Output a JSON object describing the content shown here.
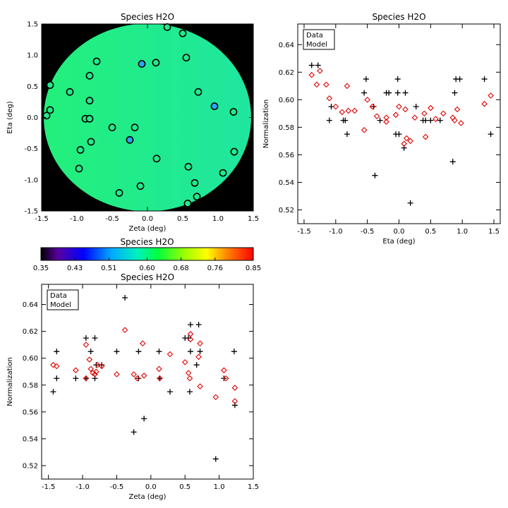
{
  "colors": {
    "disk_fill": "#22f07a",
    "disk_fill_edge": "#1fe6a0",
    "background": "#000000",
    "data_marker": "#000000",
    "model_marker": "#e00000"
  },
  "chart_data": [
    {
      "type": "scatter",
      "title": "Species H2O",
      "xlabel": "Zeta (deg)",
      "ylabel": "Eta (deg)",
      "xlim": [
        -1.5,
        1.5
      ],
      "ylim": [
        -1.5,
        1.5
      ],
      "xticks": [
        "-1.5",
        "-1.0",
        "-0.5",
        "0.0",
        "0.5",
        "1.0",
        "1.5"
      ],
      "yticks": [
        "-1.5",
        "-1.0",
        "-0.5",
        "0.0",
        "0.5",
        "1.0",
        "1.5"
      ],
      "description_value_range": [
        0.35,
        0.85
      ],
      "points": [
        {
          "x": 0.28,
          "y": 1.45,
          "v": 0.605
        },
        {
          "x": 0.5,
          "y": 1.35,
          "v": 0.605
        },
        {
          "x": 0.55,
          "y": 0.96,
          "v": 0.615
        },
        {
          "x": -0.08,
          "y": 0.86,
          "v": 0.545
        },
        {
          "x": 0.12,
          "y": 0.88,
          "v": 0.605
        },
        {
          "x": -0.72,
          "y": 0.9,
          "v": 0.605
        },
        {
          "x": -1.38,
          "y": 0.52,
          "v": 0.605
        },
        {
          "x": -1.1,
          "y": 0.41,
          "v": 0.605
        },
        {
          "x": -0.82,
          "y": 0.67,
          "v": 0.605
        },
        {
          "x": -0.82,
          "y": 0.27,
          "v": 0.605
        },
        {
          "x": 0.72,
          "y": 0.41,
          "v": 0.605
        },
        {
          "x": 0.95,
          "y": 0.18,
          "v": 0.56
        },
        {
          "x": 1.22,
          "y": 0.09,
          "v": 0.605
        },
        {
          "x": -1.38,
          "y": 0.12,
          "v": 0.605
        },
        {
          "x": -1.43,
          "y": 0.03,
          "v": 0.605
        },
        {
          "x": -0.88,
          "y": -0.02,
          "v": 0.605
        },
        {
          "x": -0.82,
          "y": -0.02,
          "v": 0.605
        },
        {
          "x": -0.5,
          "y": -0.16,
          "v": 0.605
        },
        {
          "x": -0.18,
          "y": -0.16,
          "v": 0.605
        },
        {
          "x": -0.8,
          "y": -0.39,
          "v": 0.605
        },
        {
          "x": -0.95,
          "y": -0.52,
          "v": 0.605
        },
        {
          "x": -0.25,
          "y": -0.36,
          "v": 0.565
        },
        {
          "x": 0.13,
          "y": -0.66,
          "v": 0.605
        },
        {
          "x": 1.23,
          "y": -0.55,
          "v": 0.605
        },
        {
          "x": -0.97,
          "y": -0.82,
          "v": 0.605
        },
        {
          "x": 0.58,
          "y": -0.79,
          "v": 0.605
        },
        {
          "x": 1.07,
          "y": -0.89,
          "v": 0.605
        },
        {
          "x": 0.67,
          "y": -1.05,
          "v": 0.605
        },
        {
          "x": -0.1,
          "y": -1.1,
          "v": 0.605
        },
        {
          "x": -0.4,
          "y": -1.21,
          "v": 0.605
        },
        {
          "x": 0.7,
          "y": -1.27,
          "v": 0.605
        },
        {
          "x": 0.57,
          "y": -1.38,
          "v": 0.605
        }
      ]
    },
    {
      "type": "scatter",
      "title": "Species H2O",
      "xlabel": "Eta (deg)",
      "ylabel": "Normalization",
      "xlim": [
        -1.6,
        1.6
      ],
      "ylim": [
        0.51,
        0.655
      ],
      "xticks": [
        "-1.5",
        "-1.0",
        "-0.5",
        "0.0",
        "0.5",
        "1.0",
        "1.5"
      ],
      "yticks": [
        "0.52",
        "0.54",
        "0.56",
        "0.58",
        "0.60",
        "0.62",
        "0.64"
      ],
      "legend_position": "top-left",
      "series": [
        {
          "name": "Data",
          "marker": "plus",
          "points": [
            [
              -1.38,
              0.625
            ],
            [
              -1.28,
              0.625
            ],
            [
              -1.07,
              0.595
            ],
            [
              -1.1,
              0.585
            ],
            [
              -0.88,
              0.585
            ],
            [
              -0.82,
              0.575
            ],
            [
              -0.85,
              0.585
            ],
            [
              -0.55,
              0.605
            ],
            [
              -0.52,
              0.615
            ],
            [
              -0.4,
              0.595
            ],
            [
              -0.38,
              0.545
            ],
            [
              -0.3,
              0.585
            ],
            [
              -0.2,
              0.605
            ],
            [
              -0.16,
              0.605
            ],
            [
              -0.02,
              0.615
            ],
            [
              -0.02,
              0.605
            ],
            [
              0.0,
              0.575
            ],
            [
              0.08,
              0.565
            ],
            [
              0.1,
              0.605
            ],
            [
              0.18,
              0.525
            ],
            [
              0.27,
              0.595
            ],
            [
              0.38,
              0.585
            ],
            [
              0.42,
              0.585
            ],
            [
              0.5,
              0.585
            ],
            [
              0.65,
              0.585
            ],
            [
              0.85,
              0.555
            ],
            [
              0.88,
              0.605
            ],
            [
              0.9,
              0.615
            ],
            [
              0.96,
              0.615
            ],
            [
              1.35,
              0.615
            ],
            [
              1.45,
              0.575
            ],
            [
              -0.05,
              0.575
            ]
          ]
        },
        {
          "name": "Model",
          "marker": "diamond",
          "points": [
            [
              -1.38,
              0.618
            ],
            [
              -1.3,
              0.611
            ],
            [
              -1.25,
              0.621
            ],
            [
              -1.15,
              0.611
            ],
            [
              -1.1,
              0.601
            ],
            [
              -1.0,
              0.595
            ],
            [
              -0.9,
              0.591
            ],
            [
              -0.8,
              0.592
            ],
            [
              -0.82,
              0.61
            ],
            [
              -0.7,
              0.592
            ],
            [
              -0.55,
              0.578
            ],
            [
              -0.5,
              0.6
            ],
            [
              -0.42,
              0.595
            ],
            [
              -0.35,
              0.588
            ],
            [
              -0.2,
              0.584
            ],
            [
              -0.2,
              0.587
            ],
            [
              -0.05,
              0.589
            ],
            [
              0.0,
              0.595
            ],
            [
              0.08,
              0.568
            ],
            [
              0.12,
              0.572
            ],
            [
              0.1,
              0.593
            ],
            [
              0.18,
              0.57
            ],
            [
              0.25,
              0.587
            ],
            [
              0.4,
              0.59
            ],
            [
              0.42,
              0.573
            ],
            [
              0.5,
              0.594
            ],
            [
              0.58,
              0.586
            ],
            [
              0.7,
              0.59
            ],
            [
              0.85,
              0.587
            ],
            [
              0.88,
              0.585
            ],
            [
              0.92,
              0.593
            ],
            [
              0.98,
              0.583
            ],
            [
              1.35,
              0.597
            ],
            [
              1.45,
              0.603
            ]
          ]
        }
      ]
    },
    {
      "type": "colorbar",
      "title": "Species H2O",
      "ticks": [
        "0.35",
        "0.43",
        "0.51",
        "0.60",
        "0.68",
        "0.76",
        "0.85"
      ],
      "range": [
        0.35,
        0.85
      ]
    },
    {
      "type": "scatter",
      "title": "Species H2O",
      "xlabel": "Zeta (deg)",
      "ylabel": "Normalization",
      "xlim": [
        -1.6,
        1.5
      ],
      "ylim": [
        0.51,
        0.655
      ],
      "xticks": [
        "-1.5",
        "-1.0",
        "-0.5",
        "0.0",
        "0.5",
        "1.0",
        "1.5"
      ],
      "yticks": [
        "0.52",
        "0.54",
        "0.56",
        "0.58",
        "0.60",
        "0.62",
        "0.64"
      ],
      "legend_position": "top-left",
      "series": [
        {
          "name": "Data",
          "marker": "plus",
          "points": [
            [
              -1.43,
              0.575
            ],
            [
              -1.38,
              0.605
            ],
            [
              -1.38,
              0.585
            ],
            [
              -1.1,
              0.585
            ],
            [
              -0.95,
              0.585
            ],
            [
              -0.95,
              0.615
            ],
            [
              -0.88,
              0.605
            ],
            [
              -0.82,
              0.615
            ],
            [
              -0.82,
              0.585
            ],
            [
              -0.8,
              0.595
            ],
            [
              -0.72,
              0.595
            ],
            [
              -0.5,
              0.605
            ],
            [
              -0.38,
              0.645
            ],
            [
              -0.25,
              0.545
            ],
            [
              -0.18,
              0.605
            ],
            [
              -0.18,
              0.585
            ],
            [
              -0.1,
              0.555
            ],
            [
              0.12,
              0.605
            ],
            [
              0.13,
              0.585
            ],
            [
              0.28,
              0.575
            ],
            [
              0.5,
              0.615
            ],
            [
              0.55,
              0.615
            ],
            [
              0.57,
              0.575
            ],
            [
              0.58,
              0.625
            ],
            [
              0.58,
              0.605
            ],
            [
              0.67,
              0.595
            ],
            [
              0.7,
              0.625
            ],
            [
              0.72,
              0.605
            ],
            [
              0.95,
              0.525
            ],
            [
              1.07,
              0.585
            ],
            [
              1.22,
              0.605
            ],
            [
              1.23,
              0.565
            ]
          ]
        },
        {
          "name": "Model",
          "marker": "diamond",
          "points": [
            [
              -1.43,
              0.595
            ],
            [
              -1.38,
              0.594
            ],
            [
              -1.1,
              0.591
            ],
            [
              -0.95,
              0.585
            ],
            [
              -0.95,
              0.61
            ],
            [
              -0.9,
              0.599
            ],
            [
              -0.88,
              0.592
            ],
            [
              -0.85,
              0.589
            ],
            [
              -0.82,
              0.588
            ],
            [
              -0.8,
              0.59
            ],
            [
              -0.78,
              0.595
            ],
            [
              -0.72,
              0.594
            ],
            [
              -0.5,
              0.588
            ],
            [
              -0.38,
              0.621
            ],
            [
              -0.25,
              0.588
            ],
            [
              -0.2,
              0.585
            ],
            [
              -0.12,
              0.611
            ],
            [
              -0.1,
              0.587
            ],
            [
              0.12,
              0.592
            ],
            [
              0.13,
              0.585
            ],
            [
              0.28,
              0.603
            ],
            [
              0.5,
              0.597
            ],
            [
              0.55,
              0.589
            ],
            [
              0.57,
              0.585
            ],
            [
              0.58,
              0.614
            ],
            [
              0.58,
              0.618
            ],
            [
              0.7,
              0.601
            ],
            [
              0.72,
              0.611
            ],
            [
              0.72,
              0.579
            ],
            [
              0.95,
              0.571
            ],
            [
              1.07,
              0.591
            ],
            [
              1.1,
              0.585
            ],
            [
              1.23,
              0.578
            ],
            [
              1.23,
              0.568
            ]
          ]
        }
      ]
    }
  ]
}
